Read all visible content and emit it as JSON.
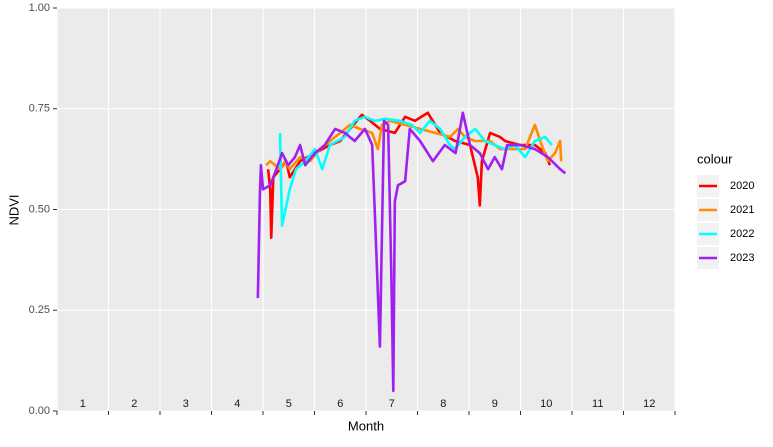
{
  "chart_data": {
    "type": "line",
    "xlabel": "Month",
    "ylabel": "NDVI",
    "xlim": [
      1,
      13
    ],
    "xticks": [
      1,
      2,
      3,
      4,
      5,
      6,
      7,
      8,
      9,
      10,
      11,
      12,
      13
    ],
    "month_labels": [
      "1",
      "2",
      "3",
      "4",
      "5",
      "6",
      "7",
      "8",
      "9",
      "10",
      "11",
      "12"
    ],
    "ylim": [
      0,
      1
    ],
    "yticks": [
      {
        "value": 0,
        "label": "0.00"
      },
      {
        "value": 0.25,
        "label": "0.25"
      },
      {
        "value": 0.5,
        "label": "0.50"
      },
      {
        "value": 0.75,
        "label": "0.75"
      },
      {
        "value": 1,
        "label": "1.00"
      }
    ],
    "grid": true,
    "legend_title": "colour",
    "legend_position": "right",
    "series": [
      {
        "name": "2020",
        "color": "#ff0000",
        "x": [
          5.1,
          5.14,
          5.16,
          5.2,
          5.33,
          5.45,
          5.52,
          5.72,
          6.01,
          6.3,
          6.5,
          6.69,
          6.92,
          7.08,
          7.27,
          7.56,
          7.76,
          7.95,
          8.2,
          8.44,
          8.73,
          9.02,
          9.17,
          9.21,
          9.25,
          9.41,
          9.6,
          9.7,
          9.99,
          10.28,
          10.48,
          10.57
        ],
        "values": [
          0.6,
          0.55,
          0.43,
          0.58,
          0.6,
          0.62,
          0.58,
          0.62,
          0.64,
          0.66,
          0.67,
          0.7,
          0.735,
          0.72,
          0.7,
          0.69,
          0.73,
          0.72,
          0.74,
          0.69,
          0.67,
          0.66,
          0.58,
          0.51,
          0.62,
          0.69,
          0.68,
          0.67,
          0.66,
          0.66,
          0.64,
          0.61
        ]
      },
      {
        "name": "2021",
        "color": "#ff8c00",
        "x": [
          5.06,
          5.14,
          5.33,
          5.43,
          5.52,
          5.72,
          5.91,
          6.11,
          6.4,
          6.69,
          6.88,
          7.12,
          7.23,
          7.31,
          7.47,
          7.76,
          8.05,
          8.34,
          8.63,
          8.79,
          8.92,
          9.12,
          9.41,
          9.6,
          9.8,
          10.09,
          10.28,
          10.41,
          10.53,
          10.67,
          10.77,
          10.79
        ],
        "values": [
          0.61,
          0.62,
          0.6,
          0.62,
          0.6,
          0.63,
          0.62,
          0.65,
          0.68,
          0.71,
          0.7,
          0.69,
          0.65,
          0.71,
          0.72,
          0.71,
          0.7,
          0.69,
          0.68,
          0.7,
          0.68,
          0.67,
          0.67,
          0.65,
          0.65,
          0.65,
          0.71,
          0.66,
          0.62,
          0.64,
          0.67,
          0.62
        ]
      },
      {
        "name": "2022",
        "color": "#00ffff",
        "x": [
          5.33,
          5.37,
          5.52,
          5.64,
          5.82,
          6.01,
          6.15,
          6.3,
          6.59,
          6.78,
          6.98,
          7.17,
          7.37,
          7.66,
          7.89,
          8.05,
          8.24,
          8.44,
          8.63,
          8.73,
          8.92,
          9.12,
          9.31,
          9.5,
          9.7,
          9.89,
          10.09,
          10.28,
          10.48,
          10.61
        ],
        "values": [
          0.69,
          0.46,
          0.55,
          0.6,
          0.62,
          0.65,
          0.6,
          0.66,
          0.68,
          0.72,
          0.73,
          0.72,
          0.725,
          0.72,
          0.71,
          0.69,
          0.72,
          0.7,
          0.66,
          0.65,
          0.68,
          0.7,
          0.67,
          0.66,
          0.65,
          0.66,
          0.63,
          0.67,
          0.68,
          0.66
        ]
      },
      {
        "name": "2023",
        "color": "#a020f0",
        "x": [
          4.9,
          4.94,
          4.96,
          5.0,
          5.14,
          5.26,
          5.37,
          5.49,
          5.62,
          5.72,
          5.82,
          6.01,
          6.2,
          6.4,
          6.59,
          6.78,
          6.98,
          7.12,
          7.19,
          7.27,
          7.35,
          7.43,
          7.49,
          7.53,
          7.56,
          7.62,
          7.76,
          7.85,
          8.05,
          8.3,
          8.53,
          8.74,
          8.88,
          9.02,
          9.21,
          9.37,
          9.5,
          9.64,
          9.74,
          9.99,
          10.28,
          10.53,
          10.77,
          10.87
        ],
        "values": [
          0.28,
          0.54,
          0.61,
          0.55,
          0.56,
          0.6,
          0.64,
          0.61,
          0.63,
          0.66,
          0.61,
          0.64,
          0.66,
          0.7,
          0.69,
          0.67,
          0.7,
          0.66,
          0.43,
          0.16,
          0.72,
          0.71,
          0.35,
          0.05,
          0.52,
          0.56,
          0.57,
          0.7,
          0.67,
          0.62,
          0.66,
          0.64,
          0.74,
          0.66,
          0.64,
          0.6,
          0.63,
          0.6,
          0.66,
          0.66,
          0.65,
          0.63,
          0.6,
          0.59
        ]
      }
    ]
  }
}
